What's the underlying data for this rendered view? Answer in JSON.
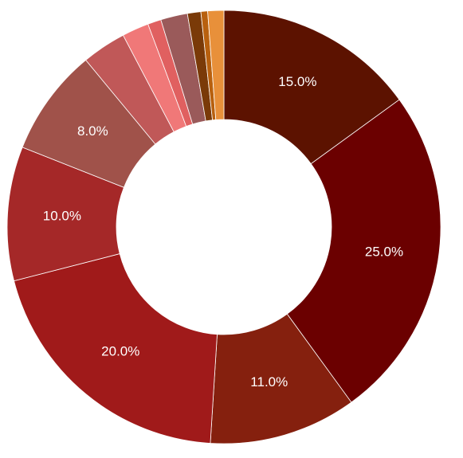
{
  "chart_data": {
    "type": "donut",
    "values": [
      15,
      25,
      11,
      20,
      10,
      8,
      3.3,
      2,
      1,
      2,
      1,
      0.5,
      1.2
    ],
    "value_labels": [
      "15.0%",
      "25.0%",
      "11.0%",
      "20.0%",
      "10.0%",
      "8.0%",
      null,
      null,
      null,
      null,
      null,
      null,
      null
    ],
    "colors": [
      "#5c1200",
      "#6b0000",
      "#85200e",
      "#a01a1a",
      "#a52828",
      "#a0524a",
      "#c05858",
      "#f07878",
      "#e06060",
      "#9a5a5a",
      "#7a3a08",
      "#b8600e",
      "#e8903a"
    ]
  }
}
